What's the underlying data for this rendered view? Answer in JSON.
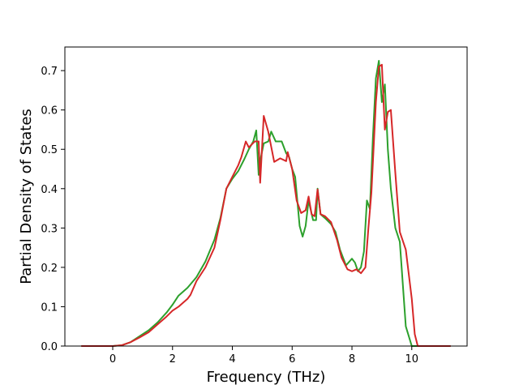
{
  "chart_data": {
    "type": "line",
    "title": "",
    "xlabel": "Frequency (THz)",
    "ylabel": "Partial Density of States",
    "xlim": [
      -1.6,
      11.85
    ],
    "ylim": [
      0.0,
      0.76
    ],
    "xticks": [
      0,
      2,
      4,
      6,
      8,
      10
    ],
    "yticks": [
      0.0,
      0.1,
      0.2,
      0.3,
      0.4,
      0.5,
      0.6,
      0.7
    ],
    "xtick_labels": [
      "0",
      "2",
      "4",
      "6",
      "8",
      "10"
    ],
    "ytick_labels": [
      "0.0",
      "0.1",
      "0.2",
      "0.3",
      "0.4",
      "0.5",
      "0.6",
      "0.7"
    ],
    "grid": false,
    "legend": false,
    "series": [
      {
        "color": "#2ca02c",
        "x": [
          -1.05,
          -0.5,
          0.0,
          0.3,
          0.6,
          0.9,
          1.2,
          1.5,
          1.8,
          2.0,
          2.2,
          2.5,
          2.8,
          3.1,
          3.4,
          3.6,
          3.8,
          4.0,
          4.2,
          4.4,
          4.55,
          4.7,
          4.8,
          4.88,
          4.95,
          5.05,
          5.2,
          5.3,
          5.45,
          5.65,
          5.8,
          5.9,
          6.0,
          6.1,
          6.25,
          6.35,
          6.45,
          6.55,
          6.7,
          6.8,
          6.85,
          6.95,
          7.1,
          7.3,
          7.45,
          7.6,
          7.8,
          8.0,
          8.1,
          8.2,
          8.3,
          8.4,
          8.5,
          8.6,
          8.7,
          8.8,
          8.9,
          9.0,
          9.1,
          9.2,
          9.3,
          9.45,
          9.6,
          9.8,
          10.0,
          10.1,
          10.2,
          10.3,
          10.5,
          11.3
        ],
        "y": [
          0.0,
          0.0,
          0.0,
          0.002,
          0.01,
          0.025,
          0.04,
          0.06,
          0.085,
          0.105,
          0.128,
          0.148,
          0.175,
          0.215,
          0.27,
          0.325,
          0.4,
          0.425,
          0.445,
          0.475,
          0.5,
          0.52,
          0.548,
          0.435,
          0.478,
          0.515,
          0.52,
          0.545,
          0.52,
          0.52,
          0.49,
          0.48,
          0.45,
          0.43,
          0.305,
          0.278,
          0.305,
          0.37,
          0.32,
          0.32,
          0.4,
          0.335,
          0.325,
          0.31,
          0.29,
          0.245,
          0.205,
          0.222,
          0.212,
          0.19,
          0.2,
          0.24,
          0.37,
          0.348,
          0.53,
          0.68,
          0.725,
          0.62,
          0.665,
          0.5,
          0.4,
          0.3,
          0.265,
          0.05,
          0.0,
          0.0,
          0.0,
          0.0,
          0.0,
          0.0
        ]
      },
      {
        "color": "#d62728",
        "x": [
          -1.05,
          -0.5,
          0.0,
          0.3,
          0.6,
          0.9,
          1.2,
          1.5,
          1.8,
          2.0,
          2.2,
          2.5,
          2.6,
          2.8,
          3.1,
          3.4,
          3.6,
          3.8,
          4.0,
          4.2,
          4.3,
          4.45,
          4.55,
          4.75,
          4.88,
          4.93,
          5.05,
          5.2,
          5.4,
          5.6,
          5.8,
          5.85,
          6.0,
          6.15,
          6.3,
          6.45,
          6.55,
          6.65,
          6.75,
          6.85,
          6.95,
          7.1,
          7.3,
          7.5,
          7.65,
          7.85,
          8.0,
          8.15,
          8.3,
          8.45,
          8.55,
          8.65,
          8.8,
          8.9,
          9.0,
          9.1,
          9.2,
          9.3,
          9.45,
          9.6,
          9.8,
          10.0,
          10.1,
          10.2,
          10.3,
          10.5,
          11.3
        ],
        "y": [
          0.0,
          0.0,
          0.0,
          0.002,
          0.01,
          0.022,
          0.035,
          0.055,
          0.075,
          0.09,
          0.1,
          0.12,
          0.13,
          0.165,
          0.2,
          0.25,
          0.32,
          0.4,
          0.43,
          0.46,
          0.48,
          0.52,
          0.505,
          0.52,
          0.52,
          0.415,
          0.585,
          0.545,
          0.468,
          0.477,
          0.47,
          0.493,
          0.45,
          0.37,
          0.338,
          0.345,
          0.38,
          0.335,
          0.33,
          0.398,
          0.335,
          0.33,
          0.315,
          0.27,
          0.225,
          0.195,
          0.19,
          0.195,
          0.185,
          0.2,
          0.3,
          0.39,
          0.62,
          0.71,
          0.715,
          0.55,
          0.595,
          0.6,
          0.44,
          0.29,
          0.245,
          0.12,
          0.03,
          0.0,
          0.0,
          0.0,
          0.0
        ]
      }
    ]
  }
}
